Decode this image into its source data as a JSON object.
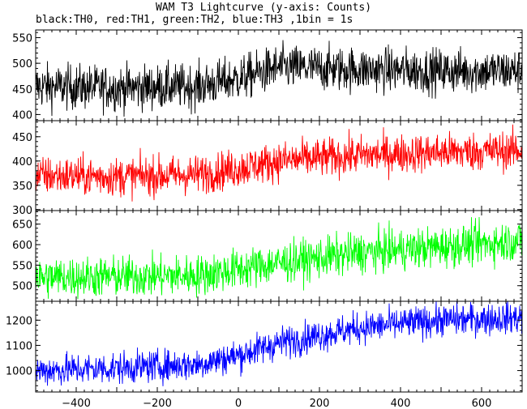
{
  "chart_data": {
    "type": "line",
    "title": "WAM T3 Lightcurve (y-axis: Counts)",
    "subtitle": "black:TH0, red:TH1, green:TH2, blue:TH3 ,1bin = 1s",
    "xlim": [
      -500,
      700
    ],
    "x_ticks": [
      -400,
      -200,
      0,
      200,
      400,
      600
    ],
    "x_tick_labels": [
      "−400",
      "−200",
      "0",
      "200",
      "400",
      "600"
    ],
    "bin_seconds": 1,
    "series": [
      {
        "name": "TH0",
        "color": "#000000",
        "ylim": [
          388,
          565
        ],
        "y_ticks": [
          400,
          450,
          500,
          550
        ],
        "y_tick_labels": [
          "400",
          "450",
          "500",
          "550"
        ],
        "trend_x": [
          -500,
          -300,
          -100,
          0,
          100,
          300,
          500,
          700
        ],
        "trend_y": [
          455,
          452,
          455,
          470,
          492,
          488,
          485,
          485
        ],
        "noise_sigma": 22
      },
      {
        "name": "TH1",
        "color": "#ff0000",
        "ylim": [
          298,
          483
        ],
        "y_ticks": [
          300,
          350,
          400,
          450
        ],
        "y_tick_labels": [
          "300",
          "350",
          "400",
          "450"
        ],
        "trend_x": [
          -500,
          -300,
          -100,
          0,
          100,
          300,
          500,
          700
        ],
        "trend_y": [
          370,
          368,
          372,
          385,
          400,
          412,
          418,
          422
        ],
        "noise_sigma": 20
      },
      {
        "name": "TH2",
        "color": "#00ff00",
        "ylim": [
          462,
          683
        ],
        "y_ticks": [
          500,
          550,
          600,
          650
        ],
        "y_tick_labels": [
          "500",
          "550",
          "600",
          "650"
        ],
        "trend_x": [
          -500,
          -300,
          -100,
          0,
          100,
          300,
          500,
          700
        ],
        "trend_y": [
          520,
          522,
          525,
          540,
          555,
          580,
          595,
          610
        ],
        "noise_sigma": 25
      },
      {
        "name": "TH3",
        "color": "#0000ff",
        "ylim": [
          915,
          1275
        ],
        "y_ticks": [
          1000,
          1100,
          1200
        ],
        "y_tick_labels": [
          "1000",
          "1100",
          "1200"
        ],
        "trend_x": [
          -500,
          -300,
          -100,
          0,
          100,
          300,
          500,
          700
        ],
        "trend_y": [
          1000,
          1010,
          1025,
          1060,
          1110,
          1170,
          1200,
          1210
        ],
        "noise_sigma": 32
      }
    ]
  }
}
